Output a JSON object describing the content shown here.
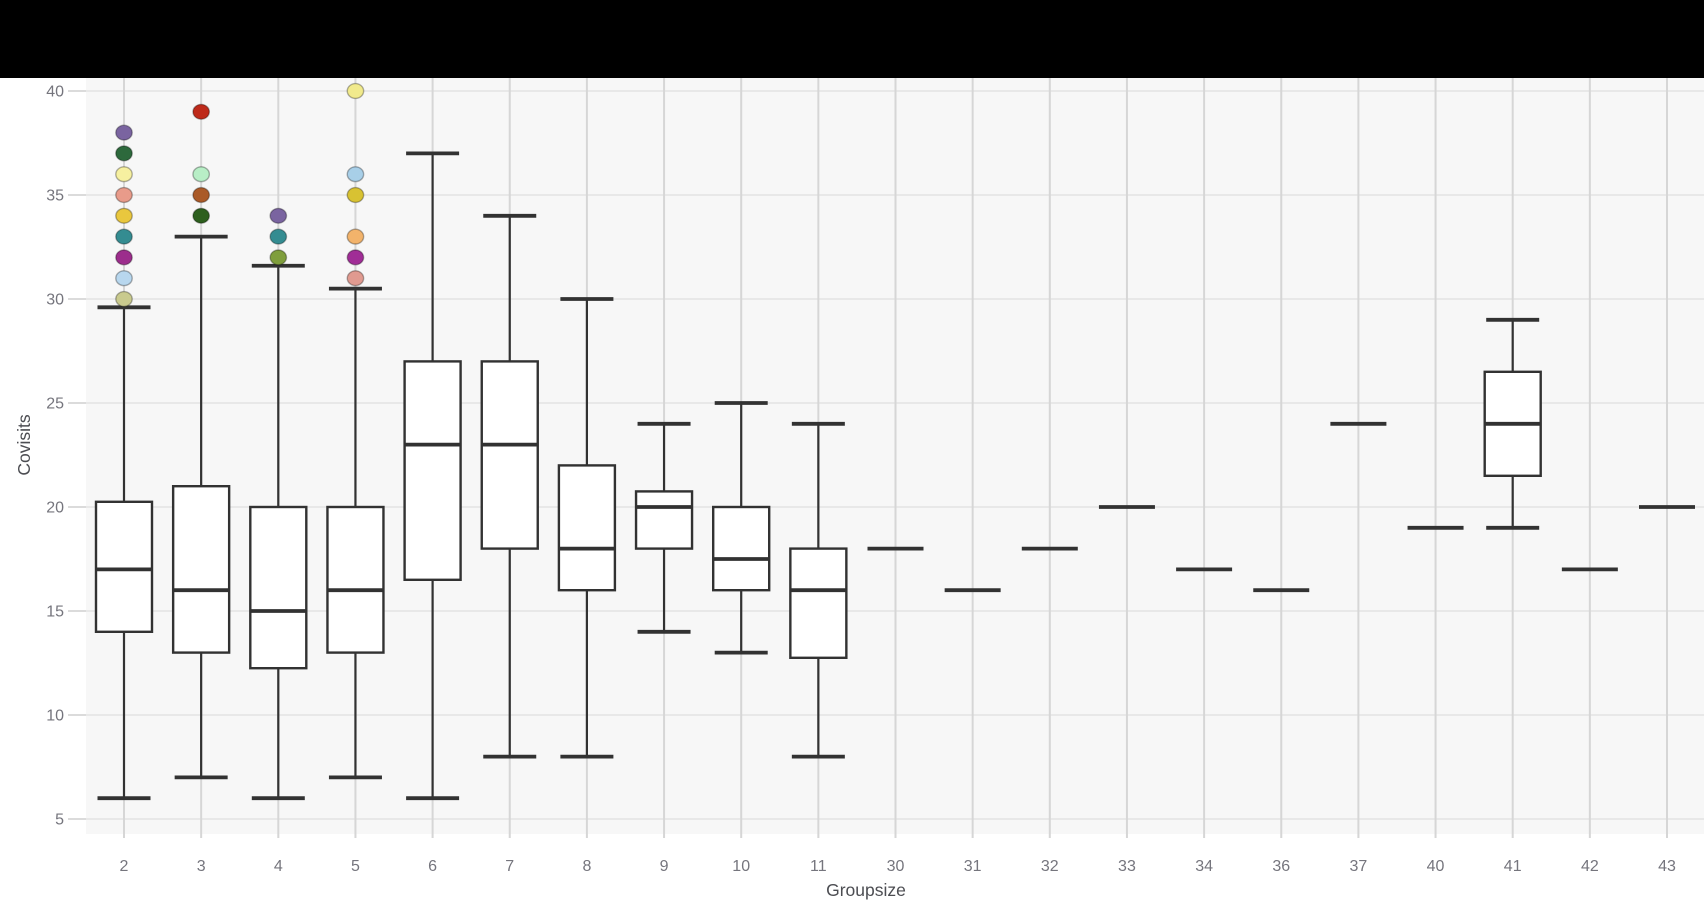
{
  "top_bar": {
    "color": "#000000"
  },
  "style": {
    "page_bg": "#ffffff",
    "plot_bg": "#f7f7f7",
    "grid_h": "#e3e3e3",
    "grid_v": "#d6d6d6",
    "axis_tick": "#cfcfcf",
    "box_stroke": "#323232",
    "box_fill": "#ffffff",
    "tick_text": "#75757d",
    "title_text": "#4c4d52",
    "outlier_stroke": "rgba(0,0,0,0.3)"
  },
  "chart_data": {
    "type": "boxplot",
    "title": "",
    "xlabel": "Groupsize",
    "ylabel": "Covisits",
    "legend": "none",
    "grid": "on",
    "ylim": [
      4.3,
      40.6
    ],
    "yticks": [
      5,
      10,
      15,
      20,
      25,
      30,
      35,
      40
    ],
    "x_categories": [
      "2",
      "3",
      "4",
      "5",
      "6",
      "7",
      "8",
      "9",
      "10",
      "11",
      "30",
      "31",
      "32",
      "33",
      "34",
      "36",
      "37",
      "40",
      "41",
      "42",
      "43"
    ],
    "boxes": [
      {
        "groupsize": "2",
        "whisker_low": 6,
        "q1": 14,
        "median": 17,
        "q3": 20.25,
        "whisker_high": 29.6,
        "outliers": [
          {
            "value": 30,
            "color": "#c9ca8e"
          },
          {
            "value": 31,
            "color": "#b8d7ee"
          },
          {
            "value": 32,
            "color": "#9c2d8c"
          },
          {
            "value": 33,
            "color": "#348c91"
          },
          {
            "value": 34,
            "color": "#e9c73e"
          },
          {
            "value": 35,
            "color": "#e89b8a"
          },
          {
            "value": 36,
            "color": "#f6f0a0"
          },
          {
            "value": 37,
            "color": "#2d693c"
          },
          {
            "value": 38,
            "color": "#7a64a0"
          }
        ]
      },
      {
        "groupsize": "3",
        "whisker_low": 7,
        "q1": 13,
        "median": 16,
        "q3": 21,
        "whisker_high": 33,
        "outliers": [
          {
            "value": 34,
            "color": "#2d5f1e"
          },
          {
            "value": 35,
            "color": "#aa5a28"
          },
          {
            "value": 36,
            "color": "#b8eec6"
          },
          {
            "value": 39,
            "color": "#be2a1a"
          }
        ]
      },
      {
        "groupsize": "4",
        "whisker_low": 6,
        "q1": 12.25,
        "median": 15,
        "q3": 20,
        "whisker_high": 31.6,
        "outliers": [
          {
            "value": 32,
            "color": "#7f9e3c"
          },
          {
            "value": 33,
            "color": "#348c91"
          },
          {
            "value": 34,
            "color": "#7a64a0"
          }
        ]
      },
      {
        "groupsize": "5",
        "whisker_low": 7,
        "q1": 13,
        "median": 16,
        "q3": 20,
        "whisker_high": 30.5,
        "outliers": [
          {
            "value": 31,
            "color": "#e09a90"
          },
          {
            "value": 32,
            "color": "#a02d96"
          },
          {
            "value": 33,
            "color": "#f2b36b"
          },
          {
            "value": 35,
            "color": "#d8c232"
          },
          {
            "value": 36,
            "color": "#a8cfe8"
          },
          {
            "value": 40,
            "color": "#f1ea8c"
          }
        ]
      },
      {
        "groupsize": "6",
        "whisker_low": 6,
        "q1": 16.5,
        "median": 23,
        "q3": 27,
        "whisker_high": 37,
        "outliers": []
      },
      {
        "groupsize": "7",
        "whisker_low": 8,
        "q1": 18,
        "median": 23,
        "q3": 27,
        "whisker_high": 34,
        "outliers": []
      },
      {
        "groupsize": "8",
        "whisker_low": 8,
        "q1": 16,
        "median": 18,
        "q3": 22,
        "whisker_high": 30,
        "outliers": []
      },
      {
        "groupsize": "9",
        "whisker_low": 14,
        "q1": 18,
        "median": 20,
        "q3": 20.75,
        "whisker_high": 24,
        "outliers": []
      },
      {
        "groupsize": "10",
        "whisker_low": 13,
        "q1": 16,
        "median": 17.5,
        "q3": 20,
        "whisker_high": 25,
        "outliers": []
      },
      {
        "groupsize": "11",
        "whisker_low": 8,
        "q1": 12.75,
        "median": 16,
        "q3": 18,
        "whisker_high": 24,
        "outliers": []
      },
      {
        "groupsize": "30",
        "value": 18
      },
      {
        "groupsize": "31",
        "value": 16
      },
      {
        "groupsize": "32",
        "value": 18
      },
      {
        "groupsize": "33",
        "value": 20
      },
      {
        "groupsize": "34",
        "value": 17
      },
      {
        "groupsize": "36",
        "value": 16
      },
      {
        "groupsize": "37",
        "value": 24
      },
      {
        "groupsize": "40",
        "value": 19
      },
      {
        "groupsize": "41",
        "whisker_low": 19,
        "q1": 21.5,
        "median": 24,
        "q3": 26.5,
        "whisker_high": 29,
        "outliers": []
      },
      {
        "groupsize": "42",
        "value": 17
      },
      {
        "groupsize": "43",
        "value": 20
      }
    ]
  }
}
